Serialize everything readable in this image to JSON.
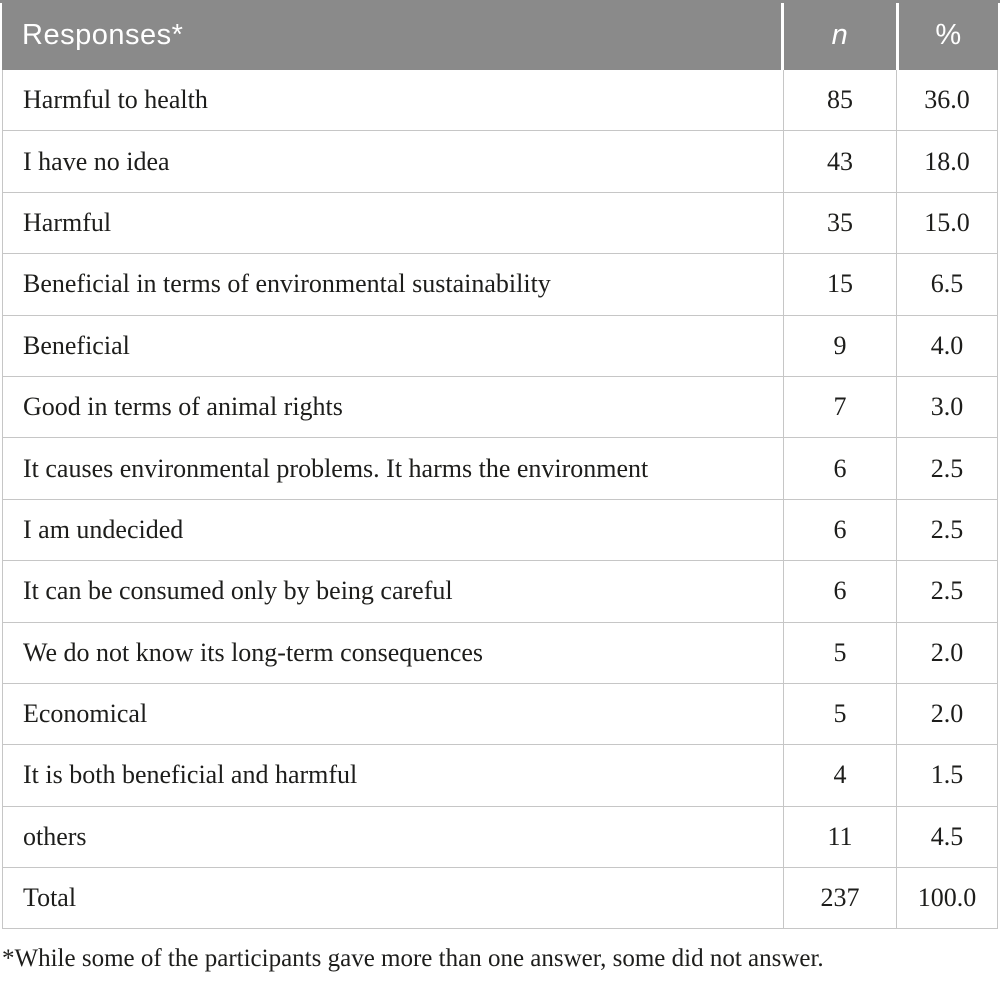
{
  "colors": {
    "header_bg": "#8a8a8a",
    "header_text": "#ffffff",
    "grid_line": "#c6c6c6",
    "body_text": "#1d1d1b"
  },
  "table": {
    "header": {
      "responses": "Responses*",
      "n": "n",
      "percent": "%"
    },
    "rows": [
      {
        "label": "Harmful to health",
        "n": "85",
        "pct": "36.0"
      },
      {
        "label": "I have no idea",
        "n": "43",
        "pct": "18.0"
      },
      {
        "label": "Harmful",
        "n": "35",
        "pct": "15.0"
      },
      {
        "label": "Beneficial in terms of environmental sustainability",
        "n": "15",
        "pct": "6.5"
      },
      {
        "label": "Beneficial",
        "n": "9",
        "pct": "4.0"
      },
      {
        "label": "Good in terms of animal rights",
        "n": "7",
        "pct": "3.0"
      },
      {
        "label": "It causes environmental problems. It harms the environment",
        "n": "6",
        "pct": "2.5"
      },
      {
        "label": "I am undecided",
        "n": "6",
        "pct": "2.5"
      },
      {
        "label": "It can be consumed only by being careful",
        "n": "6",
        "pct": "2.5"
      },
      {
        "label": "We do not know its long-term consequences",
        "n": "5",
        "pct": "2.0"
      },
      {
        "label": "Economical",
        "n": "5",
        "pct": "2.0"
      },
      {
        "label": "It is both beneficial and harmful",
        "n": "4",
        "pct": "1.5"
      },
      {
        "label": "others",
        "n": "11",
        "pct": "4.5"
      },
      {
        "label": "Total",
        "n": "237",
        "pct": "100.0"
      }
    ],
    "footnote": "*While some of the participants gave more than one answer, some did not answer."
  }
}
